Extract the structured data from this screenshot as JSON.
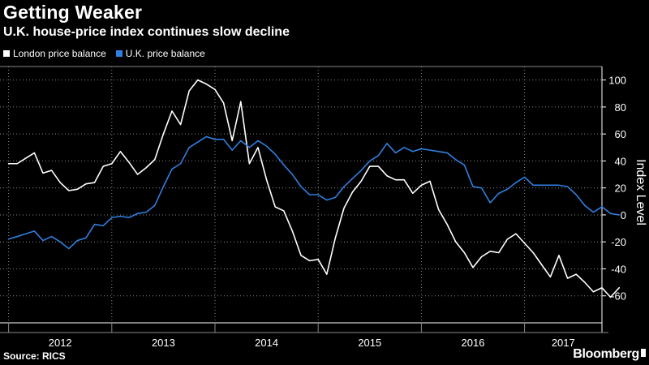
{
  "header": {
    "title": "Getting Weaker",
    "subtitle": "U.K. house-price index continues slow decline"
  },
  "footer": {
    "source": "Source: RICS",
    "brand": "Bloomberg"
  },
  "colors": {
    "background": "#000000",
    "london": "#ffffff",
    "uk": "#2f7fe0",
    "grid": "#8a8a8a"
  },
  "chart_data": {
    "type": "line",
    "title": "Getting Weaker",
    "subtitle": "U.K. house-price index continues slow decline",
    "xlabel": "",
    "ylabel": "Index Level",
    "x_start": "2012-01",
    "x_end": "2017-07",
    "x_range": [
      "2011-12",
      "2017-10"
    ],
    "x_tick_labels": [
      "2012",
      "2013",
      "2014",
      "2015",
      "2016",
      "2017"
    ],
    "ylim": [
      -80,
      110
    ],
    "y_ticks": [
      100,
      80,
      60,
      40,
      20,
      0,
      -20,
      -40,
      -60
    ],
    "grid": true,
    "legend_position": "top-left",
    "series": [
      {
        "name": "London price balance",
        "color": "#ffffff",
        "values": [
          38,
          38,
          42,
          46,
          31,
          33,
          24,
          18,
          19,
          23,
          24,
          36,
          38,
          47,
          39,
          30,
          35,
          41,
          60,
          77,
          67,
          92,
          100,
          97,
          93,
          83,
          55,
          84,
          38,
          50,
          26,
          6,
          3,
          -12,
          -30,
          -34,
          -33,
          -44,
          -17,
          5,
          17,
          25,
          36,
          36,
          29,
          26,
          26,
          16,
          22,
          25,
          4,
          -7,
          -20,
          -28,
          -39,
          -31,
          -27,
          -28,
          -18,
          -14,
          -21,
          -28,
          -37,
          -46,
          -30,
          -47,
          -44,
          -50,
          -57,
          -54,
          -61,
          -54
        ]
      },
      {
        "name": "U.K. price balance",
        "color": "#2f7fe0",
        "values": [
          -18,
          -16,
          -14,
          -12,
          -19,
          -16,
          -20,
          -25,
          -19,
          -17,
          -7,
          -8,
          -2,
          -1,
          -2,
          1,
          2,
          7,
          21,
          34,
          38,
          50,
          54,
          58,
          56,
          56,
          48,
          55,
          50,
          55,
          51,
          45,
          37,
          30,
          21,
          15,
          15,
          11,
          13,
          21,
          27,
          33,
          40,
          44,
          53,
          46,
          50,
          47,
          49,
          48,
          47,
          46,
          41,
          37,
          21,
          20,
          9,
          16,
          19,
          24,
          28,
          22,
          22,
          22,
          22,
          21,
          15,
          7,
          2,
          6,
          1,
          0
        ]
      }
    ]
  }
}
